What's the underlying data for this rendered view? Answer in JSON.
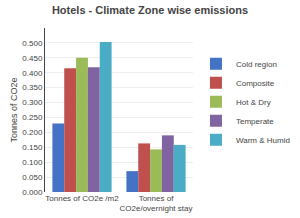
{
  "chart_data": {
    "type": "bar",
    "title": "Hotels - Climate Zone wise emissions",
    "ylabel": "Tonnes of CO2e",
    "categories": [
      "Tonnes of CO2e /m2",
      "Tonnes of\nCO2e/overnight stay"
    ],
    "series": [
      {
        "name": "Cold region",
        "color": "#4472C4",
        "values": [
          0.23,
          0.07
        ]
      },
      {
        "name": "Composite",
        "color": "#C0504D",
        "values": [
          0.415,
          0.163
        ]
      },
      {
        "name": "Hot & Dry",
        "color": "#9BBB59",
        "values": [
          0.45,
          0.143
        ]
      },
      {
        "name": "Temperate",
        "color": "#8064A2",
        "values": [
          0.418,
          0.19
        ]
      },
      {
        "name": "Warm & Humid",
        "color": "#4BACC6",
        "values": [
          0.503,
          0.158
        ]
      }
    ],
    "ylim": [
      0.0,
      0.55
    ],
    "yticks": [
      {
        "value": 0.0,
        "label": "0.000"
      },
      {
        "value": 0.05,
        "label": "0.050"
      },
      {
        "value": 0.1,
        "label": "0.100"
      },
      {
        "value": 0.15,
        "label": "0.150"
      },
      {
        "value": 0.2,
        "label": "0.200"
      },
      {
        "value": 0.25,
        "label": "0.250"
      },
      {
        "value": 0.3,
        "label": "0.300"
      },
      {
        "value": 0.35,
        "label": "0.350"
      },
      {
        "value": 0.4,
        "label": "0.400"
      },
      {
        "value": 0.45,
        "label": "0.450"
      },
      {
        "value": 0.5,
        "label": "0.500"
      }
    ],
    "grid": true,
    "legend": "right"
  }
}
